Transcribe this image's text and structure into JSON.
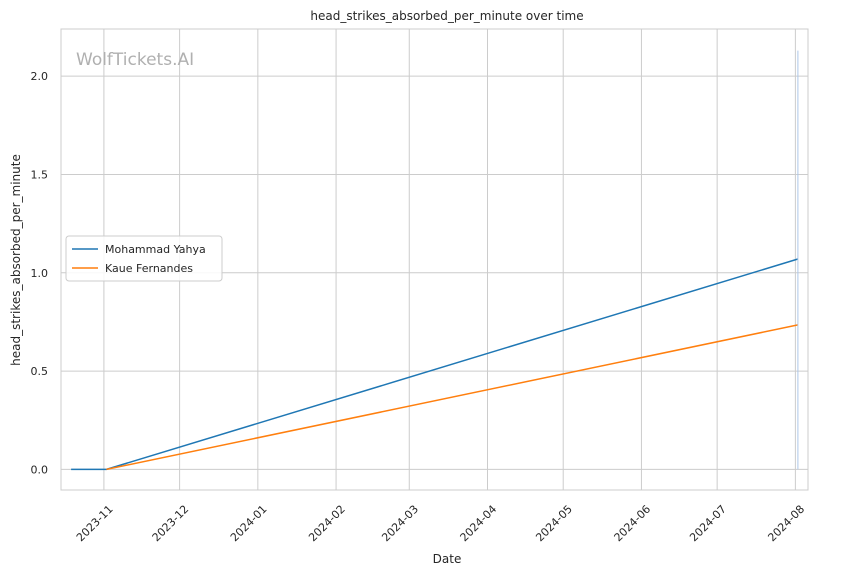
{
  "chart_data": {
    "type": "line",
    "title": "head_strikes_absorbed_per_minute over time",
    "xlabel": "Date",
    "ylabel": "head_strikes_absorbed_per_minute",
    "xlim": [
      "2023-10-15",
      "2024-08-06"
    ],
    "ylim": [
      -0.105,
      2.24
    ],
    "x_ticks": [
      "2023-11",
      "2023-12",
      "2024-01",
      "2024-02",
      "2024-03",
      "2024-04",
      "2024-05",
      "2024-06",
      "2024-07",
      "2024-08"
    ],
    "x_tick_dates": [
      "2023-11-01",
      "2023-12-01",
      "2024-01-01",
      "2024-02-01",
      "2024-03-01",
      "2024-04-01",
      "2024-05-01",
      "2024-06-01",
      "2024-07-01",
      "2024-08-01"
    ],
    "y_ticks": [
      0.0,
      0.5,
      1.0,
      1.5,
      2.0
    ],
    "y_tick_labels": [
      "0.0",
      "0.5",
      "1.0",
      "1.5",
      "2.0"
    ],
    "grid": true,
    "legend_position": "center-left",
    "watermark": "WolfTickets.AI",
    "series": [
      {
        "name": "Mohammad Yahya",
        "color": "#1f77b4",
        "x": [
          "2023-10-19",
          "2023-11-02",
          "2024-08-02"
        ],
        "y": [
          0.0,
          0.0,
          1.07
        ]
      },
      {
        "name": "Kaue Fernandes",
        "color": "#ff7f0e",
        "x": [
          "2023-11-02",
          "2024-08-02"
        ],
        "y": [
          0.0,
          0.735
        ]
      }
    ],
    "annotations": [
      {
        "type": "vertical-line",
        "x": "2024-08-02",
        "y_range": [
          0.0,
          2.13
        ],
        "color": "#aec7e8"
      }
    ]
  }
}
